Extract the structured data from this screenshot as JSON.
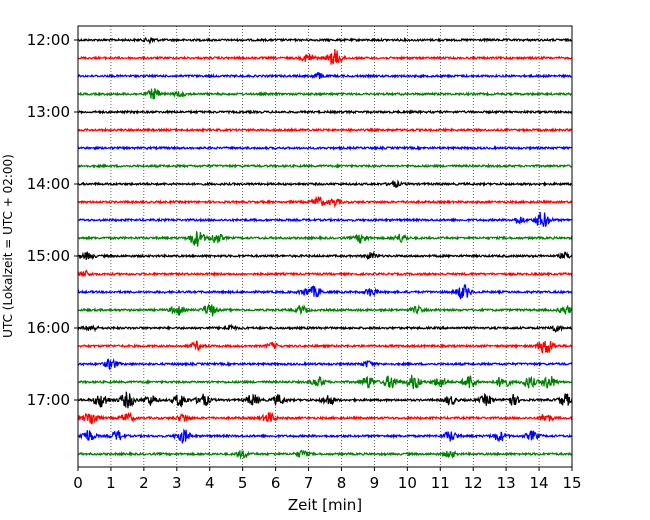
{
  "chart_data": {
    "type": "line",
    "subtype": "helicorder",
    "xlabel": "Zeit  [min]",
    "ylabel": "UTC (Lokalzeit = UTC + 02:00)",
    "xlim": [
      0,
      15
    ],
    "x_ticks": [
      "0",
      "1",
      "2",
      "3",
      "4",
      "5",
      "6",
      "7",
      "8",
      "9",
      "10",
      "11",
      "12",
      "13",
      "14",
      "15"
    ],
    "y_ticks": [
      "12:00",
      "13:00",
      "14:00",
      "15:00",
      "16:00",
      "17:00"
    ],
    "grid": "vertical dotted at each minute",
    "line_colors": [
      "#000000",
      "#ff0000",
      "#0000ff",
      "#008000"
    ],
    "traces": [
      {
        "start": "12:00",
        "color": "#000000",
        "bursts": [
          [
            2.2,
            0.5
          ]
        ]
      },
      {
        "start": "12:15",
        "color": "#ff0000",
        "bursts": [
          [
            7.0,
            0.9
          ],
          [
            7.8,
            1.6
          ]
        ]
      },
      {
        "start": "12:30",
        "color": "#0000ff",
        "bursts": [
          [
            7.3,
            0.6
          ]
        ]
      },
      {
        "start": "12:45",
        "color": "#008000",
        "bursts": [
          [
            2.3,
            1.0
          ],
          [
            3.1,
            0.5
          ]
        ]
      },
      {
        "start": "13:00",
        "color": "#000000",
        "bursts": []
      },
      {
        "start": "13:15",
        "color": "#ff0000",
        "bursts": []
      },
      {
        "start": "13:30",
        "color": "#0000ff",
        "bursts": []
      },
      {
        "start": "13:45",
        "color": "#008000",
        "bursts": []
      },
      {
        "start": "14:00",
        "color": "#000000",
        "bursts": [
          [
            9.6,
            0.6
          ]
        ]
      },
      {
        "start": "14:15",
        "color": "#ff0000",
        "bursts": [
          [
            7.3,
            1.0
          ],
          [
            7.8,
            0.7
          ]
        ]
      },
      {
        "start": "14:30",
        "color": "#0000ff",
        "bursts": [
          [
            14.1,
            1.6
          ],
          [
            13.4,
            0.7
          ]
        ]
      },
      {
        "start": "14:45",
        "color": "#008000",
        "bursts": [
          [
            3.6,
            1.6
          ],
          [
            4.2,
            1.0
          ],
          [
            8.6,
            0.9
          ],
          [
            9.8,
            0.8
          ]
        ]
      },
      {
        "start": "15:00",
        "color": "#000000",
        "bursts": [
          [
            0.3,
            0.7
          ],
          [
            8.9,
            0.6
          ],
          [
            14.8,
            0.6
          ]
        ]
      },
      {
        "start": "15:15",
        "color": "#ff0000",
        "bursts": [
          [
            0.2,
            0.6
          ]
        ]
      },
      {
        "start": "15:30",
        "color": "#0000ff",
        "bursts": [
          [
            7.2,
            1.0
          ],
          [
            8.9,
            0.8
          ],
          [
            11.7,
            1.4
          ],
          [
            6.9,
            0.6
          ]
        ]
      },
      {
        "start": "15:45",
        "color": "#008000",
        "bursts": [
          [
            3.0,
            1.0
          ],
          [
            4.0,
            1.2
          ],
          [
            6.8,
            0.7
          ],
          [
            10.3,
            0.6
          ],
          [
            14.8,
            0.8
          ]
        ]
      },
      {
        "start": "16:00",
        "color": "#000000",
        "bursts": [
          [
            0.4,
            0.6
          ],
          [
            4.6,
            0.6
          ],
          [
            14.5,
            0.6
          ]
        ]
      },
      {
        "start": "16:15",
        "color": "#ff0000",
        "bursts": [
          [
            3.6,
            0.8
          ],
          [
            5.9,
            0.6
          ],
          [
            14.2,
            1.6
          ]
        ]
      },
      {
        "start": "16:30",
        "color": "#0000ff",
        "bursts": [
          [
            1.0,
            1.0
          ],
          [
            8.8,
            0.6
          ]
        ]
      },
      {
        "start": "16:45",
        "color": "#008000",
        "bursts": [
          [
            7.3,
            1.0
          ],
          [
            8.8,
            1.2
          ],
          [
            9.5,
            1.3
          ],
          [
            10.2,
            1.4
          ],
          [
            11.0,
            1.0
          ],
          [
            11.9,
            1.4
          ],
          [
            12.9,
            1.2
          ],
          [
            13.7,
            1.1
          ],
          [
            14.3,
            1.3
          ]
        ]
      },
      {
        "start": "17:00",
        "color": "#000000",
        "bursts": [
          [
            0.7,
            1.4
          ],
          [
            1.5,
            1.5
          ],
          [
            2.2,
            1.0
          ],
          [
            3.1,
            1.3
          ],
          [
            3.8,
            1.2
          ],
          [
            5.3,
            1.1
          ],
          [
            6.1,
            1.0
          ],
          [
            7.6,
            1.0
          ],
          [
            11.3,
            0.9
          ],
          [
            12.4,
            1.0
          ],
          [
            13.2,
            1.0
          ],
          [
            14.8,
            1.2
          ]
        ]
      },
      {
        "start": "17:15",
        "color": "#ff0000",
        "bursts": [
          [
            0.4,
            1.4
          ],
          [
            1.5,
            1.0
          ],
          [
            3.2,
            0.8
          ],
          [
            5.8,
            1.0
          ],
          [
            14.2,
            0.9
          ]
        ]
      },
      {
        "start": "17:30",
        "color": "#0000ff",
        "bursts": [
          [
            0.3,
            1.2
          ],
          [
            1.2,
            1.0
          ],
          [
            3.2,
            1.3
          ],
          [
            11.3,
            1.0
          ],
          [
            12.8,
            1.0
          ],
          [
            13.8,
            0.9
          ]
        ]
      },
      {
        "start": "17:45",
        "color": "#008000",
        "bursts": [
          [
            5.0,
            0.7
          ],
          [
            6.8,
            0.7
          ],
          [
            11.3,
            0.6
          ]
        ]
      }
    ]
  }
}
